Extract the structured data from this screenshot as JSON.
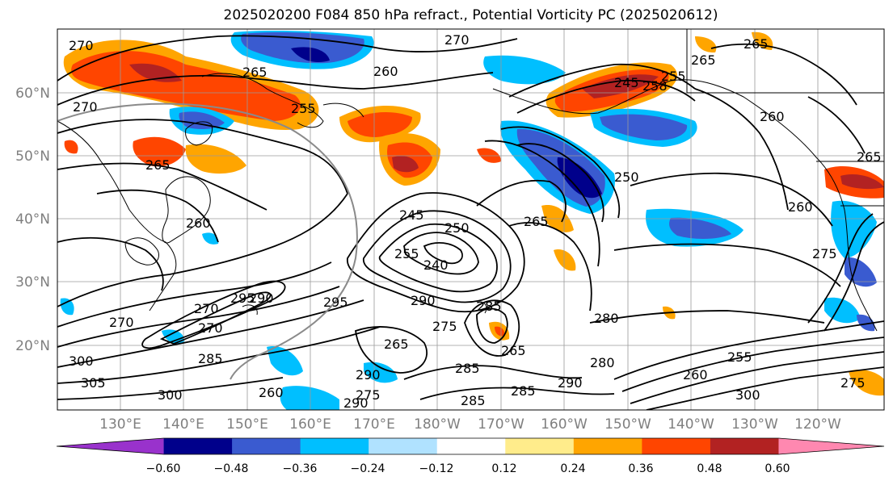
{
  "title": "2025020200 F084 850 hPa refract., Potential Vorticity PC (2025020612)",
  "lat_labels": [
    "60°N",
    "50°N",
    "40°N",
    "30°N",
    "20°N"
  ],
  "lon_labels": [
    "130°E",
    "140°E",
    "150°E",
    "160°E",
    "170°E",
    "180°W",
    "170°W",
    "160°W",
    "150°W",
    "140°W",
    "130°W",
    "120°W"
  ],
  "colorbar": {
    "colors": [
      "#9932cc",
      "#00008b",
      "#3a5bd0",
      "#00bfff",
      "#b0e2ff",
      "#ffffff",
      "#ffec8b",
      "#ffa500",
      "#ff4500",
      "#b22222",
      "#ff88b0"
    ],
    "tick_labels": [
      "−0.60",
      "−0.48",
      "−0.36",
      "−0.24",
      "−0.12",
      "0.12",
      "0.24",
      "0.36",
      "0.48",
      "0.60"
    ]
  },
  "contour_labels": [
    "270",
    "265",
    "260",
    "270",
    "265",
    "255",
    "258",
    "265",
    "260",
    "265",
    "255",
    "245",
    "260",
    "250",
    "265",
    "245",
    "250",
    "240",
    "255",
    "290",
    "295",
    "290",
    "270",
    "270",
    "285",
    "265",
    "285",
    "275",
    "265",
    "280",
    "300",
    "285",
    "260",
    "260",
    "285",
    "285",
    "290",
    "300",
    "270",
    "260",
    "255",
    "265",
    "275",
    "290",
    "280",
    "295",
    "275",
    "270",
    "305",
    "300",
    "275",
    "290"
  ]
}
